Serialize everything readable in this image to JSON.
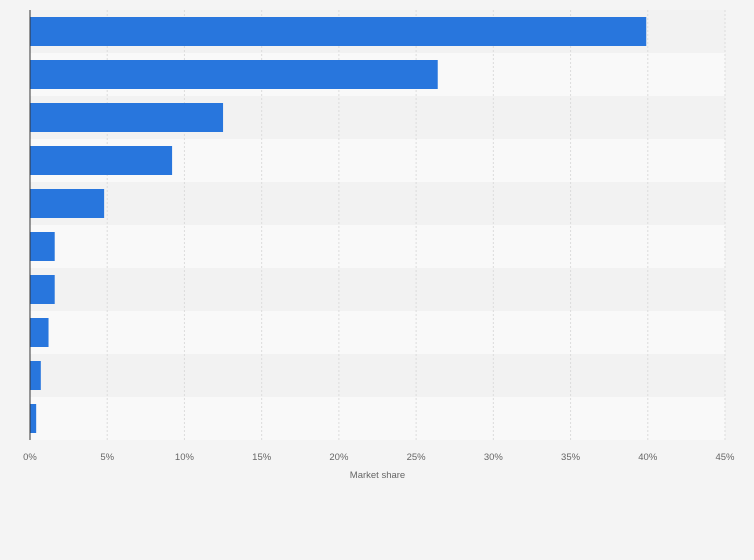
{
  "chart_data": {
    "type": "bar",
    "orientation": "horizontal",
    "categories": [
      "",
      "",
      "",
      "",
      "",
      "",
      "",
      "",
      "",
      ""
    ],
    "values": [
      39.9,
      26.4,
      12.5,
      9.2,
      4.8,
      1.6,
      1.6,
      1.2,
      0.7,
      0.4
    ],
    "xlabel": "Market share",
    "ylabel": "",
    "xlim": [
      0,
      45
    ],
    "xticks": [
      "0%",
      "5%",
      "10%",
      "15%",
      "20%",
      "25%",
      "30%",
      "35%",
      "40%",
      "45%"
    ],
    "xtick_values": [
      0,
      5,
      10,
      15,
      20,
      25,
      30,
      35,
      40,
      45
    ],
    "grid": true,
    "bar_color": "#2876dd",
    "band_colors": [
      "#f2f2f2",
      "#f9f9f9"
    ]
  }
}
